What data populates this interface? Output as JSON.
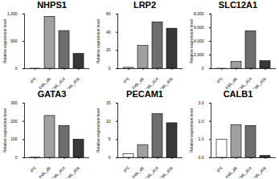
{
  "chart_data": [
    {
      "type": "bar",
      "title": "NHPS1",
      "y_label": "Relative expression level",
      "categories": [
        "iPS",
        "KidL_d8",
        "KidL_d14",
        "KidL_d28"
      ],
      "values": [
        1,
        950,
        690,
        270
      ],
      "colors": [
        "#ffffff",
        "#a0a0a0",
        "#6e6e6e",
        "#383838"
      ],
      "ylim": [
        0,
        1000
      ],
      "yticks": [
        0,
        500,
        1000
      ]
    },
    {
      "type": "bar",
      "title": "LRP2",
      "y_label": "Relative expression level",
      "categories": [
        "iPS",
        "KidL_d8",
        "KidL_d14",
        "KidL_d28"
      ],
      "values": [
        1,
        25,
        51,
        44
      ],
      "colors": [
        "#ffffff",
        "#a0a0a0",
        "#6e6e6e",
        "#383838"
      ],
      "ylim": [
        0,
        60
      ],
      "yticks": [
        0,
        20,
        40,
        60
      ]
    },
    {
      "type": "bar",
      "title": "SLC12A1",
      "y_label": "Relative expression level",
      "categories": [
        "iPS",
        "KidL_d8",
        "KidL_d14",
        "KidL_d28"
      ],
      "values": [
        1,
        1000,
        5500,
        1100
      ],
      "colors": [
        "#ffffff",
        "#a0a0a0",
        "#6e6e6e",
        "#383838"
      ],
      "ylim": [
        0,
        8000
      ],
      "yticks": [
        0,
        2000,
        4000,
        6000,
        8000
      ]
    },
    {
      "type": "bar",
      "title": "GATA3",
      "y_label": "Relative expression level",
      "categories": [
        "iPS",
        "KidL_d8",
        "KidL_d14",
        "KidL_d28"
      ],
      "values": [
        1,
        230,
        175,
        100
      ],
      "colors": [
        "#ffffff",
        "#a0a0a0",
        "#6e6e6e",
        "#383838"
      ],
      "ylim": [
        0,
        300
      ],
      "yticks": [
        0,
        100,
        200,
        300
      ]
    },
    {
      "type": "bar",
      "title": "PECAM1",
      "y_label": "Relative expression level",
      "categories": [
        "iPS",
        "KidL_d8",
        "KidL_d14",
        "KidL_d28"
      ],
      "values": [
        1,
        3.5,
        12,
        9.5
      ],
      "colors": [
        "#ffffff",
        "#a0a0a0",
        "#6e6e6e",
        "#383838"
      ],
      "ylim": [
        0,
        15
      ],
      "yticks": [
        0,
        5,
        10,
        15
      ]
    },
    {
      "type": "bar",
      "title": "CALB1",
      "y_label": "Relative expression level",
      "categories": [
        "iPS",
        "KidL_d8",
        "KidL_d14",
        "KidL_d28"
      ],
      "values": [
        1,
        1.8,
        1.75,
        0.1
      ],
      "colors": [
        "#ffffff",
        "#a0a0a0",
        "#6e6e6e",
        "#383838"
      ],
      "ylim": [
        0,
        3
      ],
      "yticks": [
        0,
        1,
        2,
        3
      ]
    }
  ]
}
